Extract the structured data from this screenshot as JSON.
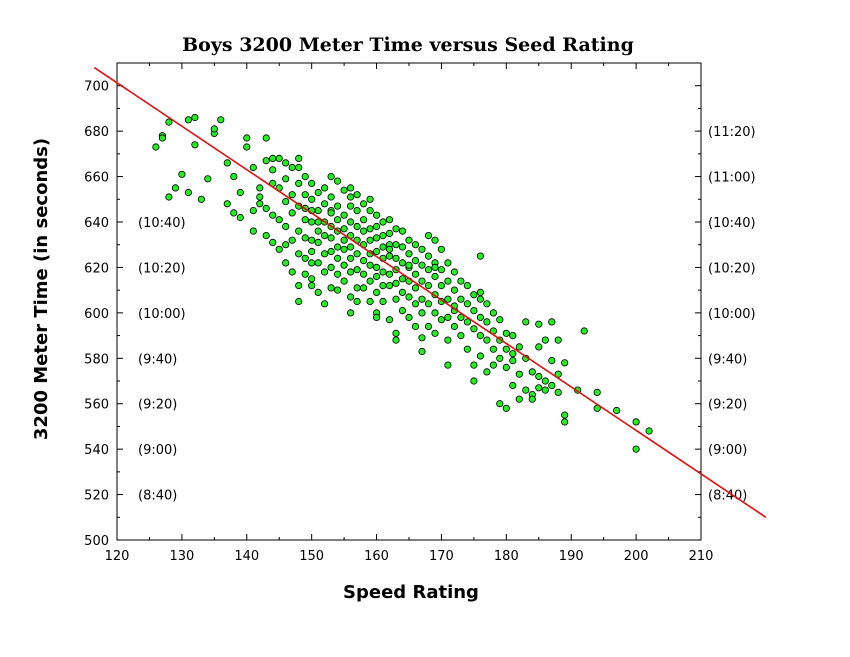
{
  "chart_data": {
    "type": "scatter",
    "title": "Boys 3200 Meter Time versus Seed Rating",
    "xlabel": "Speed Rating",
    "ylabel": "3200 Meter Time (in seconds)",
    "xlim": [
      120,
      210
    ],
    "ylim": [
      500,
      710
    ],
    "x_ticks": [
      120,
      130,
      140,
      150,
      160,
      170,
      180,
      190,
      200,
      210
    ],
    "y_ticks": [
      500,
      520,
      540,
      560,
      580,
      600,
      620,
      640,
      660,
      680,
      700
    ],
    "left_time_labels": [
      {
        "y": 640,
        "text": "(10:40)"
      },
      {
        "y": 620,
        "text": "(10:20)"
      },
      {
        "y": 600,
        "text": "(10:00)"
      },
      {
        "y": 580,
        "text": "(9:40)"
      },
      {
        "y": 560,
        "text": "(9:20)"
      },
      {
        "y": 540,
        "text": "(9:00)"
      },
      {
        "y": 520,
        "text": "(8:40)"
      }
    ],
    "right_time_labels": [
      {
        "y": 680,
        "text": "(11:20)"
      },
      {
        "y": 660,
        "text": "(11:00)"
      },
      {
        "y": 640,
        "text": "(10:40)"
      },
      {
        "y": 620,
        "text": "(10:20)"
      },
      {
        "y": 600,
        "text": "(10:00)"
      },
      {
        "y": 580,
        "text": "(9:40)"
      },
      {
        "y": 560,
        "text": "(9:20)"
      },
      {
        "y": 540,
        "text": "(9:00)"
      },
      {
        "y": 520,
        "text": "(8:40)"
      }
    ],
    "regression_line": {
      "points": [
        [
          116.5,
          708
        ],
        [
          220,
          510
        ]
      ],
      "color": "#e01010"
    },
    "point_color": "#22ee22",
    "point_outline": "#000000",
    "grid": false,
    "points": [
      [
        126,
        673
      ],
      [
        127,
        678
      ],
      [
        128,
        684
      ],
      [
        127,
        677
      ],
      [
        129,
        655
      ],
      [
        128,
        651
      ],
      [
        130,
        661
      ],
      [
        131,
        653
      ],
      [
        131,
        685
      ],
      [
        132,
        686
      ],
      [
        132,
        674
      ],
      [
        133,
        650
      ],
      [
        134,
        659
      ],
      [
        135,
        679
      ],
      [
        135,
        681
      ],
      [
        136,
        685
      ],
      [
        137,
        666
      ],
      [
        137,
        648
      ],
      [
        138,
        644
      ],
      [
        138,
        660
      ],
      [
        139,
        642
      ],
      [
        140,
        677
      ],
      [
        140,
        673
      ],
      [
        141,
        664
      ],
      [
        141,
        636
      ],
      [
        142,
        655
      ],
      [
        142,
        648
      ],
      [
        142,
        651
      ],
      [
        143,
        677
      ],
      [
        143,
        667
      ],
      [
        143,
        646
      ],
      [
        144,
        668
      ],
      [
        144,
        663
      ],
      [
        144,
        657
      ],
      [
        144,
        643
      ],
      [
        144,
        631
      ],
      [
        145,
        668
      ],
      [
        145,
        655
      ],
      [
        145,
        641
      ],
      [
        145,
        628
      ],
      [
        146,
        666
      ],
      [
        146,
        659
      ],
      [
        146,
        649
      ],
      [
        146,
        638
      ],
      [
        146,
        622
      ],
      [
        147,
        664
      ],
      [
        147,
        652
      ],
      [
        147,
        644
      ],
      [
        147,
        632
      ],
      [
        147,
        618
      ],
      [
        148,
        668
      ],
      [
        148,
        664
      ],
      [
        148,
        657
      ],
      [
        148,
        647
      ],
      [
        148,
        636
      ],
      [
        148,
        626
      ],
      [
        148,
        612
      ],
      [
        149,
        660
      ],
      [
        149,
        652
      ],
      [
        149,
        646
      ],
      [
        149,
        641
      ],
      [
        149,
        633
      ],
      [
        149,
        624
      ],
      [
        149,
        617
      ],
      [
        150,
        657
      ],
      [
        150,
        650
      ],
      [
        150,
        645
      ],
      [
        150,
        640
      ],
      [
        150,
        632
      ],
      [
        150,
        627
      ],
      [
        150,
        622
      ],
      [
        150,
        612
      ],
      [
        151,
        653
      ],
      [
        151,
        645
      ],
      [
        151,
        640
      ],
      [
        151,
        636
      ],
      [
        151,
        631
      ],
      [
        151,
        622
      ],
      [
        151,
        609
      ],
      [
        152,
        655
      ],
      [
        152,
        648
      ],
      [
        152,
        640
      ],
      [
        152,
        634
      ],
      [
        152,
        626
      ],
      [
        152,
        618
      ],
      [
        153,
        660
      ],
      [
        153,
        651
      ],
      [
        153,
        645
      ],
      [
        153,
        638
      ],
      [
        153,
        633
      ],
      [
        153,
        627
      ],
      [
        153,
        620
      ],
      [
        153,
        611
      ],
      [
        154,
        658
      ],
      [
        154,
        647
      ],
      [
        154,
        641
      ],
      [
        154,
        636
      ],
      [
        154,
        629
      ],
      [
        154,
        624
      ],
      [
        154,
        617
      ],
      [
        154,
        610
      ],
      [
        155,
        654
      ],
      [
        155,
        643
      ],
      [
        155,
        637
      ],
      [
        155,
        632
      ],
      [
        155,
        628
      ],
      [
        155,
        621
      ],
      [
        155,
        614
      ],
      [
        156,
        655
      ],
      [
        156,
        647
      ],
      [
        156,
        640
      ],
      [
        156,
        634
      ],
      [
        156,
        629
      ],
      [
        156,
        624
      ],
      [
        156,
        618
      ],
      [
        156,
        607
      ],
      [
        157,
        652
      ],
      [
        157,
        645
      ],
      [
        157,
        638
      ],
      [
        157,
        632
      ],
      [
        157,
        626
      ],
      [
        157,
        619
      ],
      [
        157,
        611
      ],
      [
        157,
        605
      ],
      [
        158,
        648
      ],
      [
        158,
        641
      ],
      [
        158,
        636
      ],
      [
        158,
        630
      ],
      [
        158,
        623
      ],
      [
        158,
        617
      ],
      [
        158,
        611
      ],
      [
        159,
        645
      ],
      [
        159,
        637
      ],
      [
        159,
        632
      ],
      [
        159,
        626
      ],
      [
        159,
        621
      ],
      [
        159,
        614
      ],
      [
        159,
        605
      ],
      [
        160,
        643
      ],
      [
        160,
        638
      ],
      [
        160,
        633
      ],
      [
        160,
        627
      ],
      [
        160,
        620
      ],
      [
        160,
        616
      ],
      [
        160,
        609
      ],
      [
        160,
        600
      ],
      [
        161,
        640
      ],
      [
        161,
        634
      ],
      [
        161,
        629
      ],
      [
        161,
        624
      ],
      [
        161,
        618
      ],
      [
        161,
        612
      ],
      [
        161,
        605
      ],
      [
        162,
        641
      ],
      [
        162,
        635
      ],
      [
        162,
        630
      ],
      [
        162,
        625
      ],
      [
        162,
        617
      ],
      [
        162,
        612
      ],
      [
        162,
        597
      ],
      [
        163,
        637
      ],
      [
        163,
        630
      ],
      [
        163,
        624
      ],
      [
        163,
        619
      ],
      [
        163,
        613
      ],
      [
        163,
        606
      ],
      [
        163,
        591
      ],
      [
        164,
        636
      ],
      [
        164,
        629
      ],
      [
        164,
        622
      ],
      [
        164,
        615
      ],
      [
        164,
        609
      ],
      [
        164,
        601
      ],
      [
        165,
        632
      ],
      [
        165,
        626
      ],
      [
        165,
        620
      ],
      [
        165,
        614
      ],
      [
        165,
        607
      ],
      [
        165,
        598
      ],
      [
        166,
        630
      ],
      [
        166,
        623
      ],
      [
        166,
        617
      ],
      [
        166,
        611
      ],
      [
        166,
        604
      ],
      [
        166,
        594
      ],
      [
        167,
        628
      ],
      [
        167,
        621
      ],
      [
        167,
        614
      ],
      [
        167,
        606
      ],
      [
        167,
        600
      ],
      [
        167,
        589
      ],
      [
        168,
        634
      ],
      [
        168,
        625
      ],
      [
        168,
        619
      ],
      [
        168,
        612
      ],
      [
        168,
        604
      ],
      [
        168,
        594
      ],
      [
        169,
        632
      ],
      [
        169,
        622
      ],
      [
        169,
        616
      ],
      [
        169,
        608
      ],
      [
        169,
        600
      ],
      [
        169,
        591
      ],
      [
        170,
        628
      ],
      [
        170,
        619
      ],
      [
        170,
        612
      ],
      [
        170,
        605
      ],
      [
        170,
        597
      ],
      [
        171,
        622
      ],
      [
        171,
        614
      ],
      [
        171,
        606
      ],
      [
        171,
        598
      ],
      [
        171,
        588
      ],
      [
        172,
        618
      ],
      [
        172,
        610
      ],
      [
        172,
        601
      ],
      [
        172,
        594
      ],
      [
        173,
        614
      ],
      [
        173,
        606
      ],
      [
        173,
        598
      ],
      [
        173,
        590
      ],
      [
        174,
        612
      ],
      [
        174,
        604
      ],
      [
        174,
        596
      ],
      [
        174,
        584
      ],
      [
        175,
        608
      ],
      [
        175,
        601
      ],
      [
        175,
        593
      ],
      [
        175,
        577
      ],
      [
        176,
        625
      ],
      [
        176,
        606
      ],
      [
        176,
        598
      ],
      [
        176,
        590
      ],
      [
        176,
        581
      ],
      [
        177,
        604
      ],
      [
        177,
        596
      ],
      [
        177,
        588
      ],
      [
        177,
        574
      ],
      [
        178,
        600
      ],
      [
        178,
        592
      ],
      [
        178,
        584
      ],
      [
        178,
        577
      ],
      [
        179,
        597
      ],
      [
        179,
        588
      ],
      [
        179,
        580
      ],
      [
        180,
        591
      ],
      [
        180,
        584
      ],
      [
        180,
        576
      ],
      [
        181,
        590
      ],
      [
        181,
        582
      ],
      [
        181,
        568
      ],
      [
        182,
        585
      ],
      [
        182,
        573
      ],
      [
        182,
        562
      ],
      [
        183,
        596
      ],
      [
        183,
        580
      ],
      [
        183,
        566
      ],
      [
        184,
        574
      ],
      [
        184,
        564
      ],
      [
        185,
        595
      ],
      [
        185,
        572
      ],
      [
        185,
        567
      ],
      [
        186,
        588
      ],
      [
        186,
        570
      ],
      [
        187,
        596
      ],
      [
        187,
        579
      ],
      [
        188,
        588
      ],
      [
        188,
        573
      ],
      [
        188,
        565
      ],
      [
        189,
        578
      ],
      [
        189,
        555
      ],
      [
        189,
        552
      ],
      [
        191,
        566
      ],
      [
        192,
        592
      ],
      [
        194,
        565
      ],
      [
        194,
        558
      ],
      [
        197,
        557
      ],
      [
        200,
        552
      ],
      [
        200,
        540
      ],
      [
        202,
        548
      ],
      [
        148,
        605
      ],
      [
        152,
        604
      ],
      [
        156,
        600
      ],
      [
        160,
        598
      ],
      [
        163,
        588
      ],
      [
        167,
        583
      ],
      [
        171,
        577
      ],
      [
        175,
        570
      ],
      [
        179,
        560
      ],
      [
        180,
        558
      ],
      [
        185,
        585
      ],
      [
        186,
        566
      ],
      [
        139,
        653
      ],
      [
        141,
        645
      ],
      [
        143,
        634
      ],
      [
        146,
        630
      ],
      [
        150,
        615
      ],
      [
        153,
        644
      ],
      [
        156,
        651
      ],
      [
        159,
        650
      ],
      [
        162,
        628
      ],
      [
        165,
        621
      ],
      [
        169,
        620
      ],
      [
        172,
        603
      ],
      [
        176,
        609
      ],
      [
        181,
        579
      ],
      [
        184,
        562
      ],
      [
        187,
        568
      ]
    ]
  }
}
